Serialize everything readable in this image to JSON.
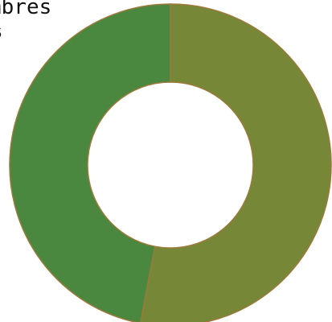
{
  "chart_data": {
    "type": "pie",
    "variant": "donut",
    "slices": [
      {
        "label": "",
        "value": 53,
        "color": "#768838"
      },
      {
        "label": "",
        "value": 47,
        "color": "#4a8840"
      }
    ],
    "title": "",
    "legend": "none"
  },
  "label": {
    "line1": "mbres",
    "line2": "%"
  },
  "colors": {
    "slice_outline": "#9b7a3a",
    "background": "#ffffff"
  }
}
